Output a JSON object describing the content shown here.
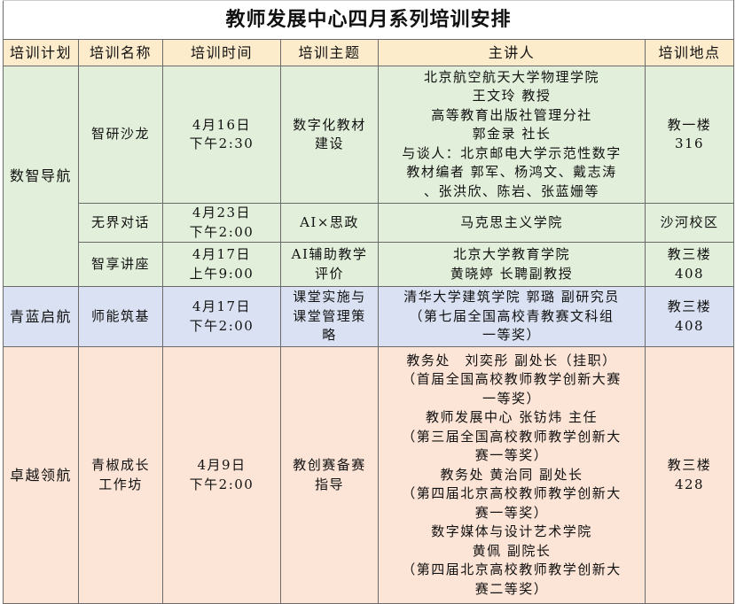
{
  "title": "教师发展中心四月系列培训安排",
  "headers": [
    "培训计划",
    "培训名称",
    "培训时间",
    "培训主题",
    "主讲人",
    "培训地点"
  ],
  "groups": [
    {
      "plan": "数智导航",
      "color": "#e2efda",
      "rows": [
        {
          "name": [
            "智研沙龙"
          ],
          "time": [
            "4月16日",
            "下午2:30"
          ],
          "topic": [
            "数字化教材",
            "建设"
          ],
          "speaker": [
            "北京航空航天大学物理学院",
            "王文玲 教授",
            "高等教育出版社管理分社",
            "郭金录 社长",
            "与谈人：北京邮电大学示范性数字",
            "教材编者 郭军、杨鸿文、戴志涛",
            "、张洪欣、陈岩、张蓝姗等"
          ],
          "place": [
            "教一楼",
            "316"
          ]
        },
        {
          "name": [
            "无界对话"
          ],
          "time": [
            "4月23日",
            "下午2:00"
          ],
          "topic": [
            "AI×思政"
          ],
          "speaker": [
            "马克思主义学院"
          ],
          "place": [
            "沙河校区"
          ]
        },
        {
          "name": [
            "智享讲座"
          ],
          "time": [
            "4月17日",
            "上午9:00"
          ],
          "topic": [
            "AI辅助教学",
            "评价"
          ],
          "speaker": [
            "北京大学教育学院",
            "黄晓婷 长聘副教授"
          ],
          "place": [
            "教三楼",
            "408"
          ]
        }
      ]
    },
    {
      "plan": "青蓝启航",
      "color": "#d9e1f2",
      "rows": [
        {
          "name": [
            "师能筑基"
          ],
          "time": [
            "4月17日",
            "下午2:00"
          ],
          "topic": [
            "课堂实施与",
            "课堂管理策",
            "略"
          ],
          "speaker": [
            "清华大学建筑学院 郭璐 副研究员",
            "（第七届全国高校青教赛文科组",
            "一等奖）"
          ],
          "place": [
            "教三楼",
            "408"
          ]
        }
      ]
    },
    {
      "plan": "卓越领航",
      "color": "#fce4d6",
      "rows": [
        {
          "name": [
            "青椒成长",
            "工作坊"
          ],
          "time": [
            "4月9日",
            "下午2:00"
          ],
          "topic": [
            "教创赛备赛",
            "指导"
          ],
          "speaker": [
            "教务处　刘奕彤 副处长（挂职）",
            "（首届全国高校教师教学创新大赛",
            "一等奖）",
            "教师发展中心 张钫炜 主任",
            "（第三届全国高校教师教学创新大",
            "赛一等奖）",
            "教务处 黄治同 副处长",
            "（第四届北京高校教师教学创新大",
            "赛一等奖）",
            "数字媒体与设计艺术学院",
            "黄佩 副院长",
            "（第四届北京高校教师教学创新大",
            "赛二等奖）"
          ],
          "place": [
            "教三楼",
            "428"
          ]
        }
      ]
    }
  ]
}
